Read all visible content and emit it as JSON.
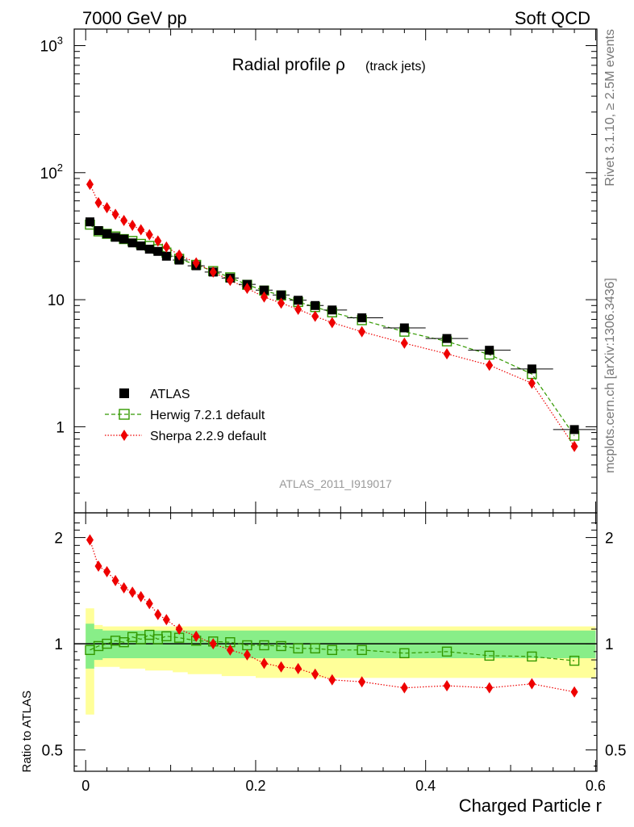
{
  "header": {
    "left": "7000 GeV pp",
    "right": "Soft QCD"
  },
  "side_text": {
    "rivet": "Rivet 3.1.10, ≥ 2.5M events",
    "mcplots": "mcplots.cern.ch [arXiv:1306.3436]"
  },
  "plot_title": {
    "main": "Radial profile ρ",
    "sub": "(track jets)"
  },
  "analysis_id": "ATLAS_2011_I919017",
  "legend": {
    "items": [
      {
        "label": "ATLAS",
        "color": "#000000",
        "marker": "square-filled"
      },
      {
        "label": "Herwig 7.2.1 default",
        "color": "#339900",
        "marker": "square-open"
      },
      {
        "label": "Sherpa 2.2.9 default",
        "color": "#ee0000",
        "marker": "diamond"
      }
    ]
  },
  "axes": {
    "xlabel": "Charged Particle r",
    "ratio_ylabel": "Ratio to ATLAS",
    "main_ytick_labels": [
      "1",
      "10",
      "10²",
      "10³"
    ],
    "ratio_ytick_labels": [
      "0.5",
      "1",
      "2"
    ],
    "xtick_labels": [
      "0",
      "0.2",
      "0.4",
      "0.6"
    ]
  },
  "chart_data": [
    {
      "type": "scatter",
      "panel": "main",
      "yscale": "log",
      "xlim": [
        -0.01,
        0.6
      ],
      "ylim": [
        0.2,
        1300
      ],
      "x": [
        0.005,
        0.015,
        0.025,
        0.035,
        0.045,
        0.055,
        0.065,
        0.075,
        0.085,
        0.095,
        0.11,
        0.13,
        0.15,
        0.17,
        0.19,
        0.21,
        0.23,
        0.25,
        0.27,
        0.29,
        0.325,
        0.375,
        0.425,
        0.475,
        0.525,
        0.575
      ],
      "series": [
        {
          "name": "ATLAS",
          "color": "#000000",
          "values": [
            41,
            35,
            33,
            31,
            30,
            28,
            26.5,
            25,
            24,
            22,
            20.5,
            18.5,
            16.5,
            14.8,
            13.2,
            11.9,
            10.9,
            9.9,
            9.0,
            8.3,
            7.2,
            6.0,
            4.95,
            4.0,
            2.85,
            0.95
          ]
        },
        {
          "name": "Herwig 7.2.1 default",
          "color": "#339900",
          "values": [
            39,
            34.5,
            33,
            31.5,
            30,
            29,
            27.5,
            26.5,
            25,
            23.5,
            21,
            18.8,
            16.8,
            15,
            13.1,
            11.8,
            10.8,
            9.6,
            8.75,
            7.95,
            6.9,
            5.6,
            4.7,
            3.7,
            2.6,
            0.85
          ]
        },
        {
          "name": "Sherpa 2.2.9 default",
          "color": "#ee0000",
          "values": [
            81,
            58,
            53,
            47,
            42,
            38.5,
            35.5,
            32.5,
            29,
            26,
            22.5,
            19.5,
            16.5,
            14.2,
            12.3,
            10.5,
            9.4,
            8.4,
            7.4,
            6.6,
            5.6,
            4.55,
            3.75,
            3.05,
            2.2,
            0.7
          ]
        }
      ]
    },
    {
      "type": "scatter",
      "panel": "ratio",
      "yscale": "log",
      "xlim": [
        -0.01,
        0.6
      ],
      "ylim": [
        0.43,
        2.35
      ],
      "x": [
        0.005,
        0.015,
        0.025,
        0.035,
        0.045,
        0.055,
        0.065,
        0.075,
        0.085,
        0.095,
        0.11,
        0.13,
        0.15,
        0.17,
        0.19,
        0.21,
        0.23,
        0.25,
        0.27,
        0.29,
        0.325,
        0.375,
        0.425,
        0.475,
        0.525,
        0.575
      ],
      "bands": {
        "inner": {
          "color": "#88ee88",
          "lo": [
            0.85,
            0.9,
            0.91,
            0.91,
            0.91,
            0.91,
            0.91,
            0.91,
            0.91,
            0.91,
            0.91,
            0.91,
            0.91,
            0.91,
            0.91,
            0.91,
            0.91,
            0.91,
            0.91,
            0.91,
            0.91,
            0.91,
            0.91,
            0.91,
            0.91,
            0.91
          ],
          "hi": [
            1.14,
            1.1,
            1.09,
            1.09,
            1.09,
            1.09,
            1.09,
            1.09,
            1.09,
            1.09,
            1.09,
            1.09,
            1.09,
            1.09,
            1.09,
            1.09,
            1.09,
            1.09,
            1.09,
            1.09,
            1.09,
            1.09,
            1.09,
            1.09,
            1.09,
            1.09
          ]
        },
        "outer": {
          "color": "#ffff99",
          "lo": [
            0.63,
            0.86,
            0.86,
            0.86,
            0.85,
            0.85,
            0.85,
            0.84,
            0.84,
            0.84,
            0.83,
            0.82,
            0.82,
            0.81,
            0.81,
            0.8,
            0.8,
            0.8,
            0.8,
            0.8,
            0.8,
            0.8,
            0.8,
            0.8,
            0.8,
            0.8
          ],
          "hi": [
            1.26,
            1.13,
            1.12,
            1.12,
            1.12,
            1.12,
            1.12,
            1.12,
            1.12,
            1.12,
            1.12,
            1.12,
            1.12,
            1.12,
            1.12,
            1.12,
            1.12,
            1.12,
            1.12,
            1.12,
            1.12,
            1.12,
            1.12,
            1.12,
            1.12,
            1.12
          ]
        }
      },
      "series": [
        {
          "name": "Herwig 7.2.1 default",
          "color": "#339900",
          "values": [
            0.96,
            0.985,
            1.0,
            1.02,
            1.01,
            1.045,
            1.03,
            1.06,
            1.03,
            1.05,
            1.04,
            1.02,
            1.015,
            1.01,
            0.99,
            0.99,
            0.985,
            0.97,
            0.97,
            0.96,
            0.96,
            0.94,
            0.95,
            0.925,
            0.92,
            0.895
          ]
        },
        {
          "name": "Sherpa 2.2.9 default",
          "color": "#ee0000",
          "values": [
            1.97,
            1.66,
            1.6,
            1.51,
            1.44,
            1.4,
            1.36,
            1.3,
            1.21,
            1.17,
            1.1,
            1.05,
            1.0,
            0.96,
            0.93,
            0.88,
            0.86,
            0.85,
            0.82,
            0.79,
            0.78,
            0.75,
            0.76,
            0.75,
            0.77,
            0.73
          ]
        }
      ],
      "reference_line": 1.0
    }
  ]
}
